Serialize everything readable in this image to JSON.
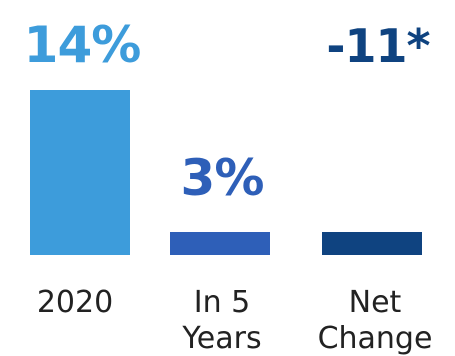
{
  "chart_data": {
    "type": "bar",
    "categories": [
      {
        "lines": [
          "2020"
        ]
      },
      {
        "lines": [
          "In 5",
          "Years"
        ]
      },
      {
        "lines": [
          "Net",
          "Change"
        ]
      }
    ],
    "values": [
      14,
      3,
      -11
    ],
    "value_labels": [
      "14%",
      "3%",
      "-11*"
    ],
    "colors": [
      "#3d9cdb",
      "#2e5fb8",
      "#0f4380"
    ],
    "label_colors": [
      "#3d9cdb",
      "#2e5fb8",
      "#0f4380"
    ],
    "title": "",
    "xlabel": "",
    "ylabel": "",
    "grid": false,
    "legend": "none"
  }
}
